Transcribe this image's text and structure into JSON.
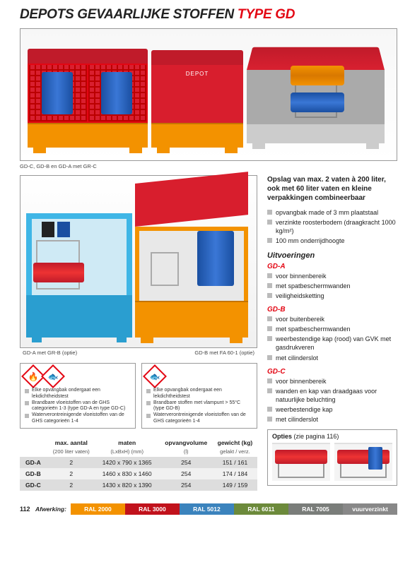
{
  "title_black": "DEPOTS GEVAARLIJKE STOFFEN ",
  "title_red": "TYPE GD",
  "hero_caption": "GD-C, GD-B en GD-A met GR-C",
  "sec2_captions": {
    "left": "GD-A met GR-B (optie)",
    "right": "GD-B met FA 60-1 (optie)"
  },
  "hazard_left": [
    "Elke opvangbak ondergaat een lekdichtheidstest",
    "Brandbare vloeistoffen van de GHS categorieën 1-3 (type GD-A en type GD-C)",
    "Waterverontreinigende vloeistoffen van de GHS categorieën 1-4"
  ],
  "hazard_right": [
    "Elke opvangbak ondergaat een lekdichtheidstest",
    "Brandbare stoffen met vlampunt > 55°C (type GD-B)",
    "Waterverontreinigende vloeistoffen van de GHS categorieën 1-4"
  ],
  "spec_headers": {
    "qty": "max. aantal",
    "qty_sub": "(200 liter vaten)",
    "dims": "maten",
    "dims_sub": "(LxBxH) (mm)",
    "vol": "opvangvolume",
    "vol_sub": "(l)",
    "wt": "gewicht (kg)",
    "wt_sub": "gelakt / verz."
  },
  "spec_rows": [
    {
      "model": "GD-A",
      "qty": "2",
      "dims": "1420 x 790 x 1365",
      "vol": "254",
      "wt": "151 / 161"
    },
    {
      "model": "GD-B",
      "qty": "2",
      "dims": "1460 x 830 x 1460",
      "vol": "254",
      "wt": "174 / 184"
    },
    {
      "model": "GD-C",
      "qty": "2",
      "dims": "1430 x 820 x 1390",
      "vol": "254",
      "wt": "149 / 159"
    }
  ],
  "intro": "Opslag van max. 2 vaten à 200 liter, ook met 60 liter vaten en kleine verpakkingen combineerbaar",
  "main_bullets": [
    "opvangbak made of 3 mm plaatstaal",
    "verzinkte roosterbodem (draagkracht 1000 kg/m²)",
    "100 mm onderrijdhoogte"
  ],
  "section_uit": "Uitvoeringen",
  "variants": {
    "gda": {
      "label": "GD-A",
      "items": [
        "voor binnenbereik",
        "met spatbeschermwanden",
        "veiligheidsketting"
      ]
    },
    "gdb": {
      "label": "GD-B",
      "items": [
        "voor buitenbereik",
        "met spatbeschermwanden",
        "weerbestendige kap (rood) van GVK met gasdrukveren",
        "met cilinderslot"
      ]
    },
    "gdc": {
      "label": "GD-C",
      "items": [
        "voor binnenbereik",
        "wanden en kap van draadgaas voor natuurlijke beluchting",
        "weerbestendige kap",
        "met cilinderslot"
      ]
    }
  },
  "opties_label": "Opties",
  "opties_ref": "(zie pagina 116)",
  "page_number": "112",
  "footer_label": "Afwerking:",
  "swatches": [
    {
      "label": "RAL 2000",
      "color": "#f39200"
    },
    {
      "label": "RAL 3000",
      "color": "#c1121c"
    },
    {
      "label": "RAL 5012",
      "color": "#3b83bd"
    },
    {
      "label": "RAL 6011",
      "color": "#6c8a3b"
    },
    {
      "label": "RAL 7005",
      "color": "#7a7d7a"
    },
    {
      "label": "vuurverzinkt",
      "color": "#888888"
    }
  ]
}
